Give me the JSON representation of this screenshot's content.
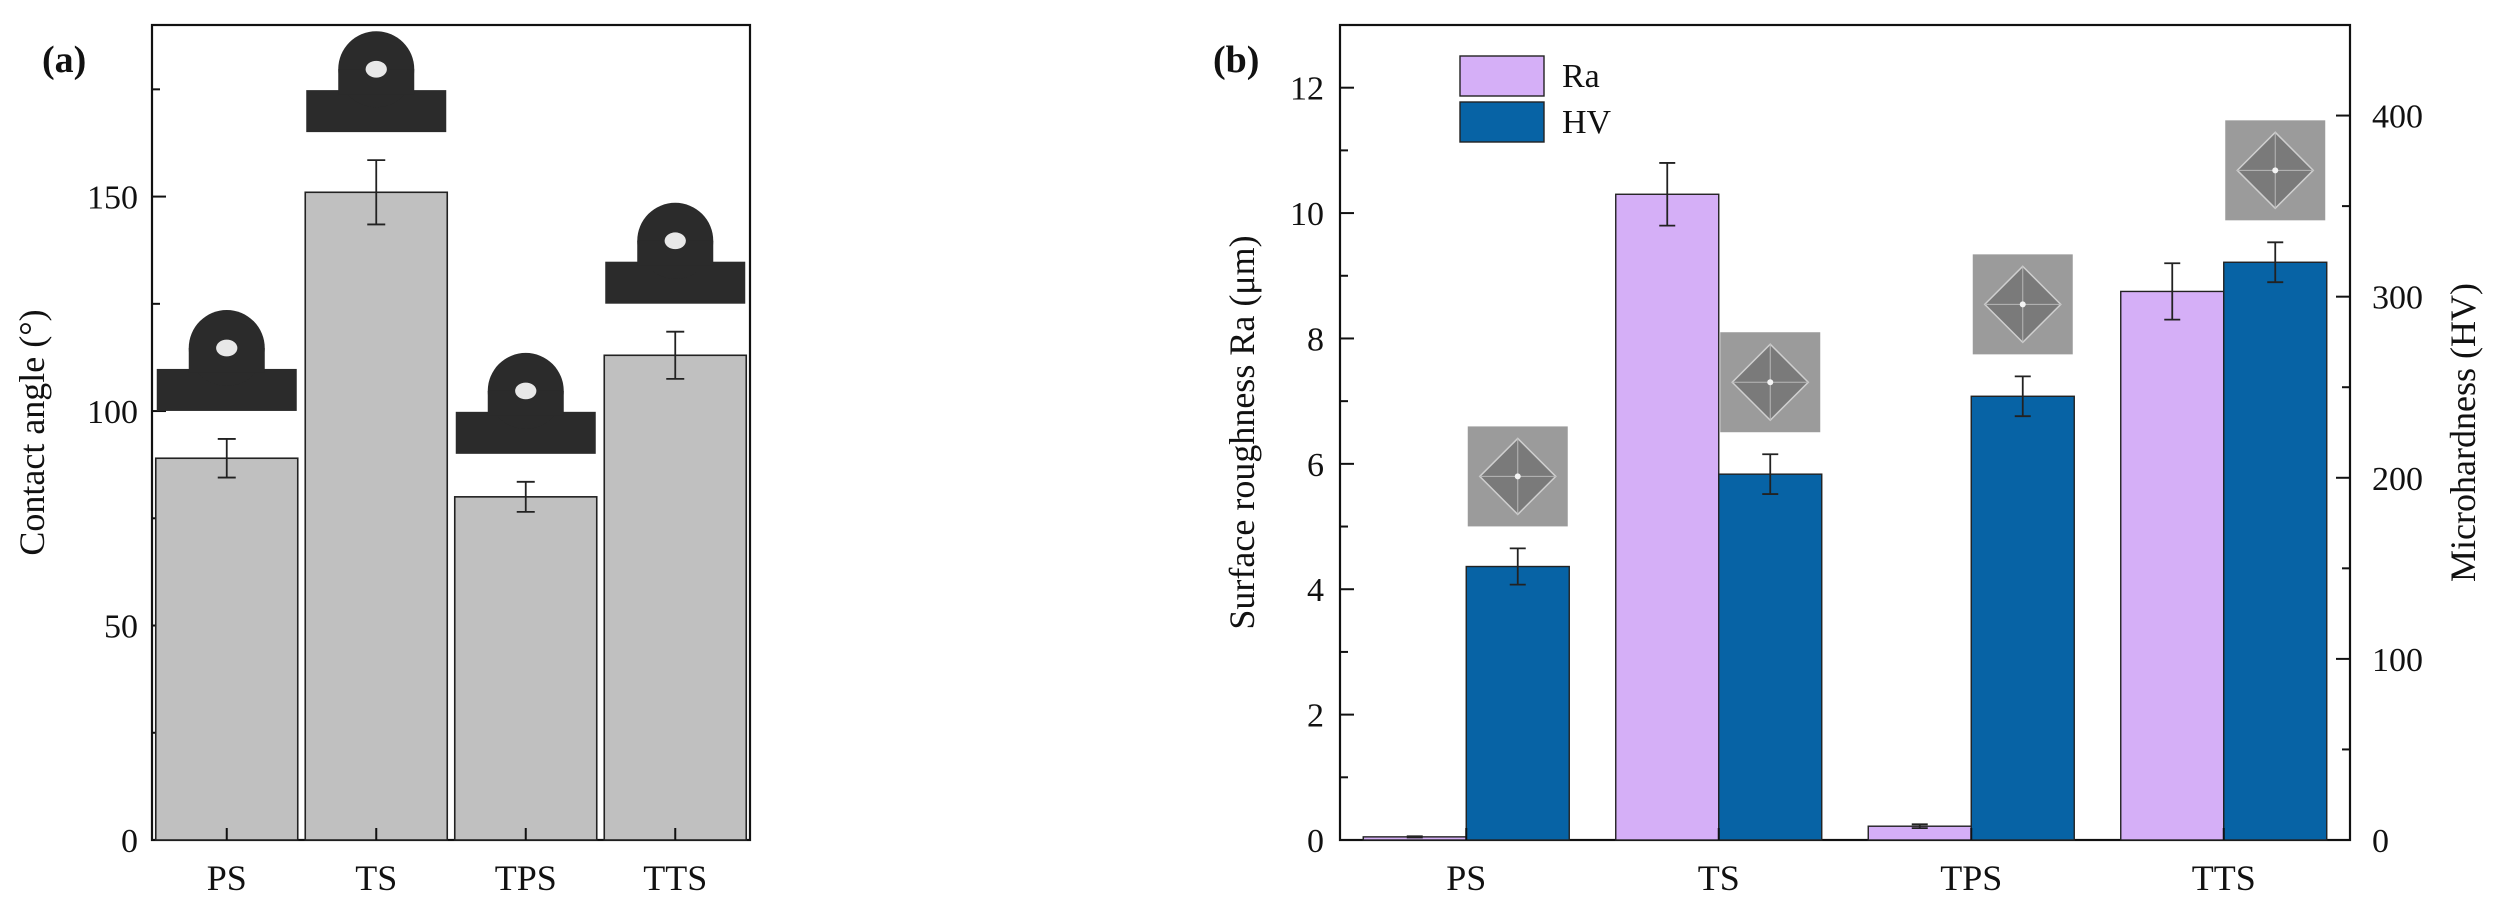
{
  "chart_data": [
    {
      "panel": "(a)",
      "type": "bar",
      "categories": [
        "PS",
        "TS",
        "TPS",
        "TTS"
      ],
      "values": [
        89,
        151,
        80,
        113
      ],
      "errors": [
        4.5,
        7.5,
        3.5,
        5.5
      ],
      "ylabel": "Contact angle (°)",
      "xlabel": "",
      "ylim": [
        0,
        190
      ],
      "yticks": [
        "0",
        "50",
        "100",
        "150"
      ],
      "bar_color": "#c0c0c0",
      "insets": "water droplet photographs above each bar"
    },
    {
      "panel": "(b)",
      "type": "bar",
      "categories": [
        "PS",
        "TS",
        "TPS",
        "TTS"
      ],
      "series": [
        {
          "name": "Ra",
          "axis": "left",
          "color": "#d5aff7",
          "values": [
            0.05,
            10.3,
            0.22,
            8.75
          ],
          "errors": [
            0.01,
            0.5,
            0.03,
            0.45
          ]
        },
        {
          "name": "HV",
          "axis": "right",
          "color": "#0763a5",
          "values": [
            151,
            202,
            245,
            319
          ],
          "errors": [
            10,
            11,
            11,
            11
          ]
        }
      ],
      "ylabel_left": "Surface roughness Ra (μm)",
      "ylabel_right": "Microhardness (HV)",
      "ylim_left": [
        0,
        13
      ],
      "ylim_right": [
        0,
        450
      ],
      "yticks_left": [
        "0",
        "2",
        "4",
        "6",
        "8",
        "10",
        "12"
      ],
      "yticks_right": [
        "0",
        "100",
        "200",
        "300",
        "400"
      ],
      "legend_position": "top-left",
      "insets": "indentation photographs above HV bars"
    }
  ]
}
